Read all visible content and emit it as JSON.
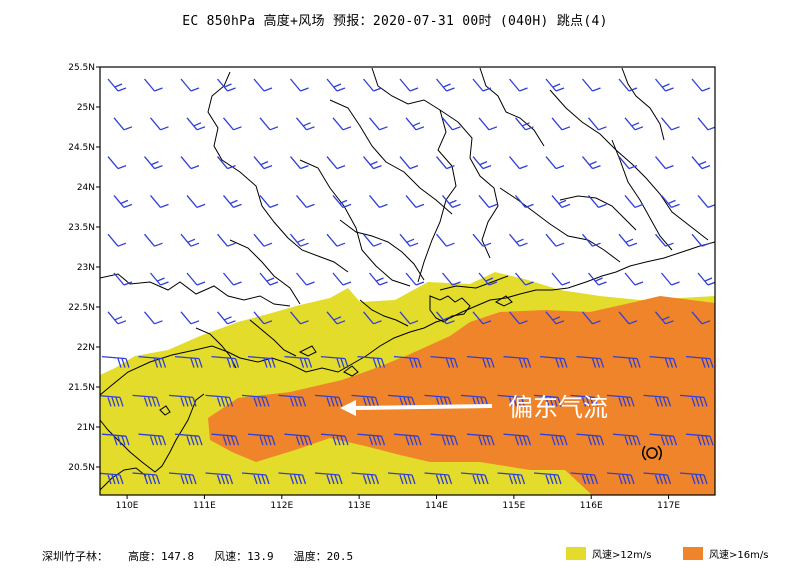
{
  "title": "EC 850hPa 高度+风场  预报：2020-07-31 00时 (040H) 跳点(4)",
  "axes": {
    "x_ticks": [
      "110E",
      "111E",
      "112E",
      "113E",
      "114E",
      "115E",
      "116E",
      "117E"
    ],
    "y_ticks": [
      "25.5N",
      "25N",
      "24.5N",
      "24N",
      "23.5N",
      "23N",
      "22.5N",
      "22N",
      "21.5N",
      "21N",
      "20.5N"
    ],
    "lon_range": [
      109.65,
      117.6
    ],
    "lat_range": [
      20.15,
      25.5
    ]
  },
  "annotation": {
    "text": "偏东气流",
    "color": "#ffffff"
  },
  "footer": {
    "station": "深圳竹子林：",
    "height": "高度：147.8",
    "speed": "风速：13.9",
    "temp": "温度：20.5"
  },
  "legend": [
    {
      "label": "风速>12m/s",
      "color": "#e3dc2a"
    },
    {
      "label": "风速>16m/s",
      "color": "#ef842b"
    }
  ],
  "colors": {
    "wind_barb": "#2f3fd8",
    "coast": "#000000",
    "shade_12": "#e3dc2a",
    "shade_16": "#ef842b"
  }
}
